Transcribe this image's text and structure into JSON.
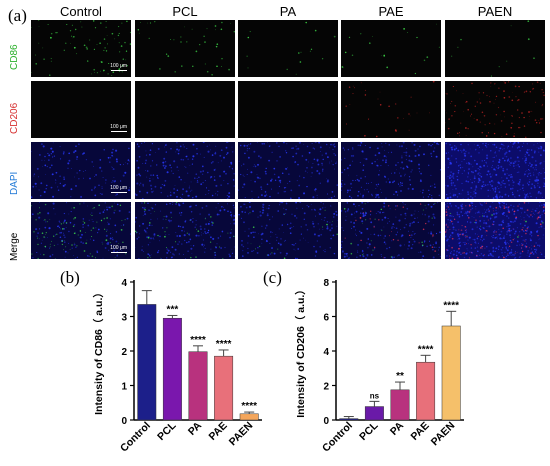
{
  "figure": {
    "panel_a_label": "(a)",
    "panel_b_label": "(b)",
    "panel_c_label": "(c)",
    "column_headers": [
      "Control",
      "PCL",
      "PA",
      "PAE",
      "PAEN"
    ],
    "row_labels": [
      "CD86",
      "CD206",
      "DAPI",
      "Merge"
    ],
    "row_label_colors": [
      "#2bb02b",
      "#d63030",
      "#1f78d6",
      "#000000"
    ],
    "scale_bar_text": "100 μm"
  },
  "chart_data": [
    {
      "type": "bar",
      "categories": [
        "Control",
        "PCL",
        "PA",
        "PAE",
        "PAEN"
      ],
      "values": [
        3.35,
        2.95,
        1.98,
        1.85,
        0.18
      ],
      "errors": [
        0.4,
        0.08,
        0.17,
        0.18,
        0.05
      ],
      "significance": [
        "",
        "***",
        "****",
        "****",
        "****"
      ],
      "bar_colors": [
        "#1c1f8a",
        "#7a17ad",
        "#b8327e",
        "#e8707a",
        "#f4a65c"
      ],
      "ylabel": "Intensity of CD86（ a.u.）",
      "ylim": [
        0,
        4
      ],
      "yticks": [
        0,
        1,
        2,
        3,
        4
      ],
      "grid": false,
      "legend": "none"
    },
    {
      "type": "bar",
      "categories": [
        "Control",
        "PCL",
        "PA",
        "PAE",
        "PAEN"
      ],
      "values": [
        0.08,
        0.78,
        1.75,
        3.35,
        5.45
      ],
      "errors": [
        0.12,
        0.3,
        0.45,
        0.4,
        0.85
      ],
      "significance": [
        "",
        "ns",
        "**",
        "****",
        "****"
      ],
      "bar_colors": [
        "#1c1f8a",
        "#6a1aa8",
        "#b8327e",
        "#e8707a",
        "#f5c06a"
      ],
      "ylabel": "Intensity of CD206（ a.u.）",
      "ylim": [
        0,
        8
      ],
      "yticks": [
        0,
        2,
        4,
        6,
        8
      ],
      "grid": false,
      "legend": "none"
    }
  ]
}
